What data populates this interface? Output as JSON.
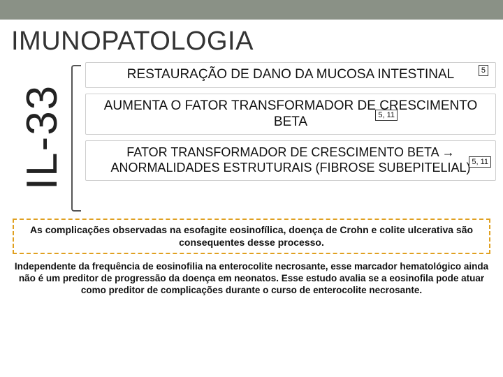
{
  "colors": {
    "topbar": "#8a9186",
    "dashed_border": "#e0a020",
    "box_border": "#cfcfcf",
    "text": "#111111"
  },
  "title": "IMUNOPATOLOGIA",
  "side_label": "IL-33",
  "boxes": [
    {
      "text": "RESTAURAÇÃO DE DANO DA MUCOSA INTESTINAL",
      "ref": "5",
      "ref_pos": "r1"
    },
    {
      "text": "AUMENTA O FATOR TRANSFORMADOR DE CRESCIMENTO BETA",
      "ref": "5, 11",
      "ref_pos": "r2"
    },
    {
      "text": "FATOR TRANSFORMADOR DE CRESCIMENTO BETA → ANORMALIDADES ESTRUTURAIS (FIBROSE SUBEPITELIAL)",
      "ref": "5, 11",
      "ref_pos": "r3"
    }
  ],
  "dashed_note": "As complicações observadas na esofagite eosinofílica, doença de Crohn e colite ulcerativa são consequentes desse processo.",
  "bottom_note": "Independente da frequência de eosinofilia na enterocolite necrosante, esse marcador hematológico ainda não é um preditor de progressão da doença em neonatos. Esse estudo avalia se a eosinofila pode atuar como preditor de complicações durante o curso de enterocolite necrosante."
}
